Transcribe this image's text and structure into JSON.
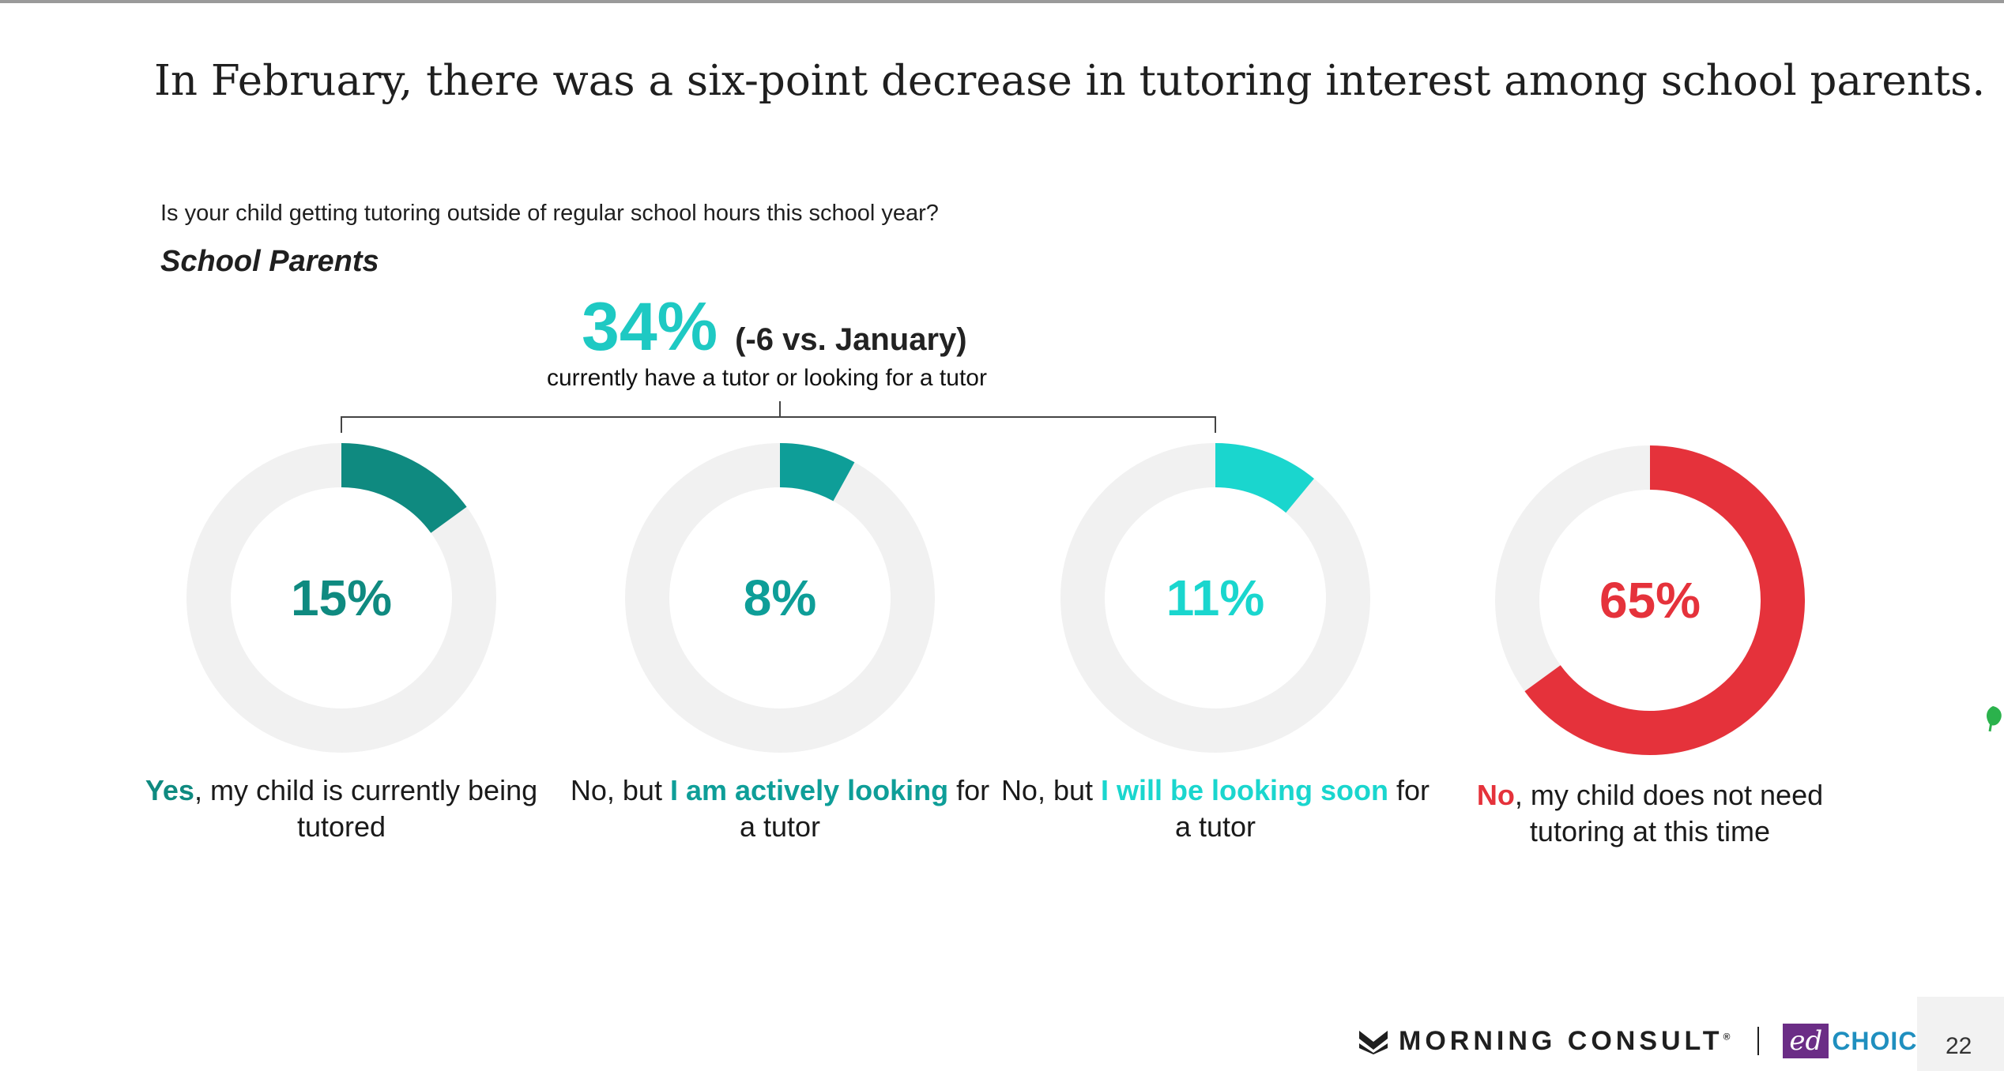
{
  "headline": "In February, there was a six-point decrease in tutoring interest among school parents.",
  "question": "Is your child getting tutoring outside of regular school hours this school year?",
  "segment": "School Parents",
  "callout": {
    "value": "34%",
    "delta": "(-6 vs. January)",
    "subtitle": "currently have a tutor or looking for a tutor"
  },
  "chart_data": {
    "type": "pie",
    "variant": "donut",
    "track_color": "#f1f1f1",
    "series": [
      {
        "name": "Yes, my child is currently being tutored",
        "value": 15,
        "label": "15%",
        "color": "#0f8a80",
        "caption_parts": [
          {
            "text": "Yes",
            "bold": true,
            "color": "#0f8a80"
          },
          {
            "text": ", my child is currently being tutored",
            "bold": false
          }
        ]
      },
      {
        "name": "No, but I am actively looking for a tutor",
        "value": 8,
        "label": "8%",
        "color": "#0e9e98",
        "caption_parts": [
          {
            "text": "No, but ",
            "bold": false
          },
          {
            "text": "I am actively looking",
            "bold": true,
            "color": "#0e9e98"
          },
          {
            "text": " for a tutor",
            "bold": false
          }
        ]
      },
      {
        "name": "No, but I will be looking soon for a tutor",
        "value": 11,
        "label": "11%",
        "color": "#1ad6ce",
        "caption_parts": [
          {
            "text": "No, but ",
            "bold": false
          },
          {
            "text": "I will be looking soon",
            "bold": true,
            "color": "#1ad6ce"
          },
          {
            "text": " for a tutor",
            "bold": false
          }
        ]
      },
      {
        "name": "No, my child does not need tutoring at this time",
        "value": 65,
        "label": "65%",
        "color": "#e5323b",
        "caption_parts": [
          {
            "text": "No",
            "bold": true,
            "color": "#e5323b"
          },
          {
            "text": ", my child does not need tutoring at this time",
            "bold": false
          }
        ]
      }
    ]
  },
  "footer": {
    "brand": "MORNING CONSULT",
    "registered": "®",
    "partner_ed": "ed",
    "partner_choice": "CHOICE",
    "page_number": "22"
  }
}
